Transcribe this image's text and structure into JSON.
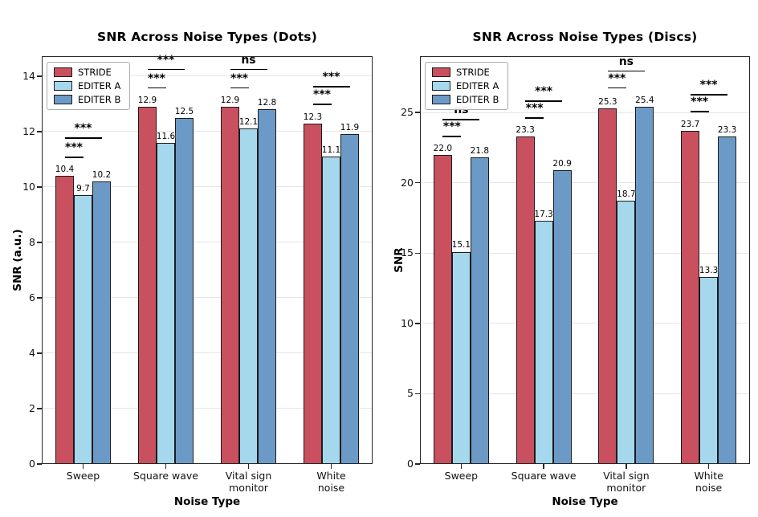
{
  "figure": {
    "background": "#ffffff"
  },
  "palette": {
    "stride": "#C8505F",
    "editer_a": "#A5D8EC",
    "editer_b": "#6B9AC6",
    "bar_edge": "#1b1b1b",
    "grid": "#e6e6e6",
    "spine": "#262626",
    "annotation": "#000000"
  },
  "chart_data": [
    {
      "type": "bar",
      "title": "SNR Across Noise Types (Dots)",
      "xlabel": "Noise Type",
      "ylabel": "SNR (a.u.)",
      "categories": [
        "Sweep",
        "Square wave",
        "Vital sign\nmonitor",
        "White noise"
      ],
      "series": [
        {
          "name": "STRIDE",
          "values": [
            10.4,
            12.9,
            12.9,
            12.3
          ]
        },
        {
          "name": "EDITER A",
          "values": [
            9.7,
            11.6,
            12.1,
            11.1
          ]
        },
        {
          "name": "EDITER B",
          "values": [
            10.2,
            12.5,
            12.8,
            11.9
          ]
        }
      ],
      "series_colors": [
        "#C8505F",
        "#A5D8EC",
        "#6B9AC6"
      ],
      "ylim": [
        0,
        14.72
      ],
      "yticks": [
        0,
        2,
        4,
        6,
        8,
        10,
        12,
        14
      ],
      "grid": true,
      "legend_position": "upper left",
      "annotations": [
        {
          "group": 0,
          "from": 0,
          "to": 1,
          "label": "***",
          "y": 11.1
        },
        {
          "group": 0,
          "from": 0,
          "to": 2,
          "label": "***",
          "y": 11.8
        },
        {
          "group": 1,
          "from": 0,
          "to": 1,
          "label": "***",
          "y": 13.6
        },
        {
          "group": 1,
          "from": 0,
          "to": 2,
          "label": "***",
          "y": 14.27
        },
        {
          "group": 2,
          "from": 0,
          "to": 1,
          "label": "***",
          "y": 13.6
        },
        {
          "group": 2,
          "from": 0,
          "to": 2,
          "label": "ns",
          "y": 14.27
        },
        {
          "group": 3,
          "from": 0,
          "to": 1,
          "label": "***",
          "y": 13.0
        },
        {
          "group": 3,
          "from": 0,
          "to": 2,
          "label": "***",
          "y": 13.65
        }
      ]
    },
    {
      "type": "bar",
      "title": "SNR Across Noise Types (Discs)",
      "xlabel": "Noise Type",
      "ylabel": "SNR",
      "categories": [
        "Sweep",
        "Square wave",
        "Vital sign\nmonitor",
        "White noise"
      ],
      "series": [
        {
          "name": "STRIDE",
          "values": [
            22.0,
            23.3,
            25.3,
            23.7
          ]
        },
        {
          "name": "EDITER A",
          "values": [
            15.1,
            17.3,
            18.7,
            13.3
          ]
        },
        {
          "name": "EDITER B",
          "values": [
            21.8,
            20.9,
            25.4,
            23.3
          ]
        }
      ],
      "series_colors": [
        "#C8505F",
        "#A5D8EC",
        "#6B9AC6"
      ],
      "ylim": [
        0,
        29.0
      ],
      "yticks": [
        0,
        5,
        10,
        15,
        20,
        25
      ],
      "grid": true,
      "legend_position": "upper left",
      "annotations": [
        {
          "group": 0,
          "from": 0,
          "to": 1,
          "label": "***",
          "y": 23.35
        },
        {
          "group": 0,
          "from": 0,
          "to": 2,
          "label": "ns",
          "y": 24.55
        },
        {
          "group": 1,
          "from": 0,
          "to": 1,
          "label": "***",
          "y": 24.65
        },
        {
          "group": 1,
          "from": 0,
          "to": 2,
          "label": "***",
          "y": 25.85
        },
        {
          "group": 2,
          "from": 0,
          "to": 1,
          "label": "***",
          "y": 26.8
        },
        {
          "group": 2,
          "from": 0,
          "to": 2,
          "label": "ns",
          "y": 28.0
        },
        {
          "group": 3,
          "from": 0,
          "to": 1,
          "label": "***",
          "y": 25.1
        },
        {
          "group": 3,
          "from": 0,
          "to": 2,
          "label": "***",
          "y": 26.3
        }
      ]
    }
  ]
}
